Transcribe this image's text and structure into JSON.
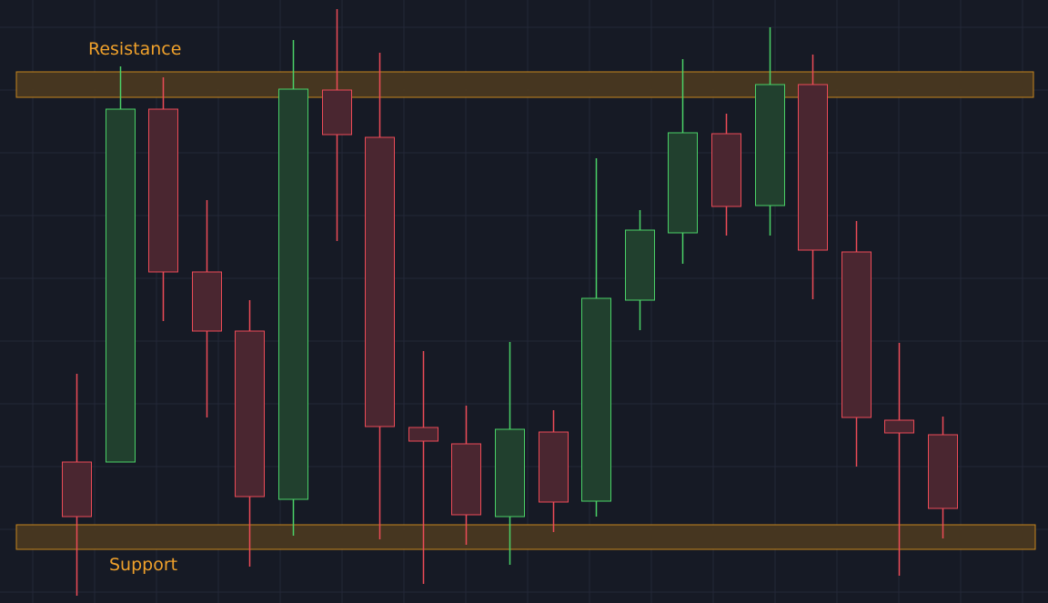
{
  "chart_data": {
    "type": "candlestick",
    "grid": true,
    "colors": {
      "background": "#161a25",
      "grid": "#232838",
      "bullish": "#4ad167",
      "bullish_body": "#21402e",
      "bearish": "#ec4b57",
      "bearish_body": "#4a2630",
      "zone_fill": "#4b3820",
      "zone_stroke": "#c7851e",
      "zone_label": "#f0a12b"
    },
    "zones": [
      {
        "name": "resistance",
        "label": "Resistance",
        "low": 556,
        "high": 584
      },
      {
        "name": "support",
        "label": "Support",
        "low": 59,
        "high": 86
      }
    ],
    "candles": [
      {
        "open": 155,
        "high": 252,
        "low": 8,
        "close": 95
      },
      {
        "open": 155,
        "high": 590,
        "low": 155,
        "close": 543
      },
      {
        "open": 543,
        "high": 578,
        "low": 310,
        "close": 364
      },
      {
        "open": 364,
        "high": 443,
        "low": 204,
        "close": 299
      },
      {
        "open": 299,
        "high": 333,
        "low": 40,
        "close": 117
      },
      {
        "open": 114,
        "high": 619,
        "low": 74,
        "close": 565
      },
      {
        "open": 564,
        "high": 653,
        "low": 398,
        "close": 515
      },
      {
        "open": 512,
        "high": 605,
        "low": 70,
        "close": 194
      },
      {
        "open": 193,
        "high": 277,
        "low": 21,
        "close": 178
      },
      {
        "open": 175,
        "high": 217,
        "low": 64,
        "close": 97
      },
      {
        "open": 95,
        "high": 287,
        "low": 42,
        "close": 191
      },
      {
        "open": 188,
        "high": 212,
        "low": 78,
        "close": 111
      },
      {
        "open": 112,
        "high": 489,
        "low": 95,
        "close": 335
      },
      {
        "open": 333,
        "high": 432,
        "low": 300,
        "close": 410
      },
      {
        "open": 407,
        "high": 598,
        "low": 373,
        "close": 517
      },
      {
        "open": 516,
        "high": 538,
        "low": 404,
        "close": 436
      },
      {
        "open": 437,
        "high": 633,
        "low": 404,
        "close": 570
      },
      {
        "open": 570,
        "high": 603,
        "low": 334,
        "close": 388
      },
      {
        "open": 386,
        "high": 420,
        "low": 150,
        "close": 204
      },
      {
        "open": 201,
        "high": 286,
        "low": 30,
        "close": 187
      },
      {
        "open": 185,
        "high": 205,
        "low": 71,
        "close": 104
      }
    ]
  }
}
